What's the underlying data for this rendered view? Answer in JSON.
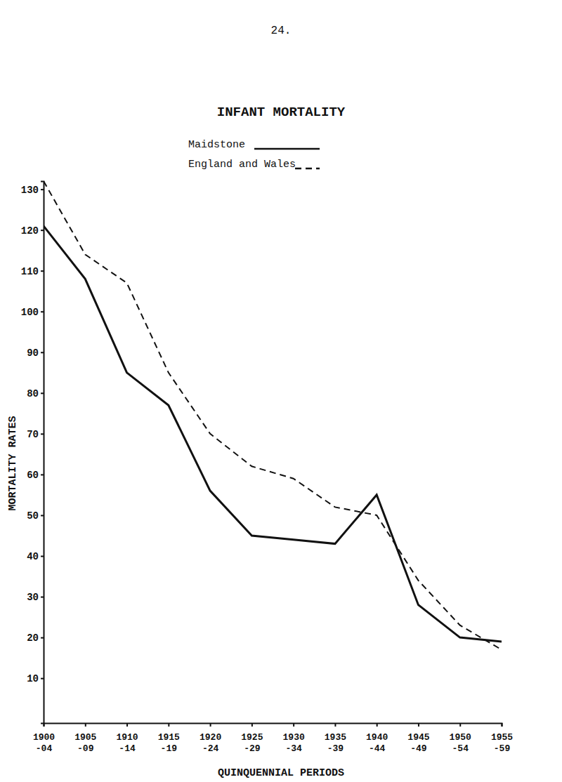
{
  "page": {
    "number": "24."
  },
  "chart_data": {
    "type": "line",
    "title": "INFANT MORTALITY",
    "x_label": "QUINQUENNIAL PERIODS",
    "y_label": "MORTALITY RATES",
    "categories": [
      "1900-04",
      "1905-09",
      "1910-14",
      "1915-19",
      "1920-24",
      "1925-29",
      "1930-34",
      "1935-39",
      "1940-44",
      "1945-49",
      "1950-54",
      "1955-59"
    ],
    "series": [
      {
        "name": "Maidstone",
        "color": "#111111",
        "line_style": "solid",
        "values": [
          121,
          108,
          85,
          77,
          56,
          45,
          44,
          43,
          55,
          28,
          20,
          19
        ]
      },
      {
        "name": "England and Wales",
        "color": "#111111",
        "line_style": "dashed",
        "values": [
          132,
          114,
          107,
          85,
          70,
          62,
          59,
          52,
          50,
          34,
          23,
          17
        ]
      }
    ],
    "ylim": [
      -1,
      132
    ],
    "yticks": [
      10,
      20,
      30,
      40,
      50,
      60,
      70,
      80,
      90,
      100,
      110,
      120,
      130
    ],
    "grid": false,
    "legend": "top"
  }
}
